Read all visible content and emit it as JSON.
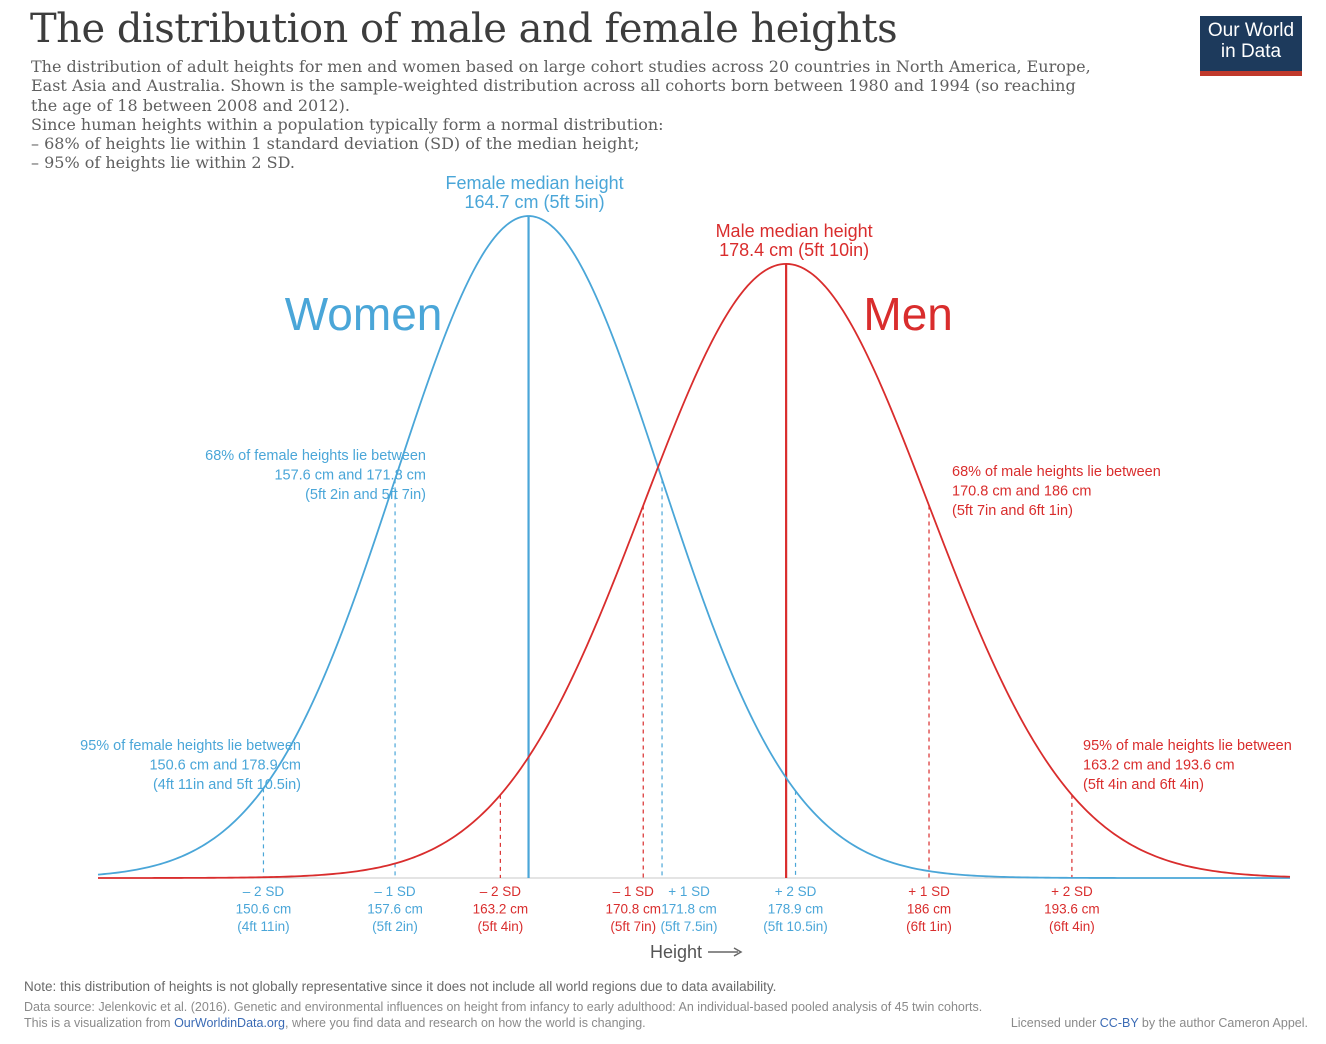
{
  "title": "The distribution of male and female heights",
  "subtitle": [
    "The distribution of adult heights for men and women based on large cohort studies across 20 countries in North America, Europe,",
    "East Asia and Australia. Shown is the sample-weighted distribution across all cohorts born between 1980 and 1994 (so reaching",
    "the age of 18 between 2008 and 2012).",
    "Since human heights within a population typically form a normal distribution:",
    "– 68% of heights lie within 1 standard deviation (SD) of the median height;",
    "– 95% of heights lie within 2 SD."
  ],
  "logo": {
    "line1": "Our World",
    "line2": "in Data",
    "bg": "#1d3a5c",
    "accent": "#c0392b"
  },
  "chart_data": {
    "type": "line",
    "xlabel": "Height",
    "colors": {
      "women": "#4aa6d8",
      "men": "#d92d2d"
    },
    "xlim": [
      141.8,
      205.2
    ],
    "series": [
      {
        "name": "Women",
        "color": "#4aa6d8",
        "median": 164.7,
        "sd": 7.05,
        "median_label": [
          "Female median height",
          "164.7 cm (5ft 5in)"
        ],
        "sd_ticks": [
          {
            "value": 150.6,
            "lines": [
              "– 2 SD",
              "150.6 cm",
              "(4ft 11in)"
            ]
          },
          {
            "value": 157.6,
            "lines": [
              "– 1 SD",
              "157.6 cm",
              "(5ft 2in)"
            ]
          },
          {
            "value": 171.8,
            "lines": [
              "+ 1 SD",
              "171.8 cm",
              "(5ft 7.5in)"
            ]
          },
          {
            "value": 178.9,
            "lines": [
              "+ 2 SD",
              "178.9 cm",
              "(5ft 10.5in)"
            ]
          }
        ],
        "annotations": [
          [
            "68% of female heights lie between",
            "157.6 cm and 171.8 cm",
            "(5ft 2in and 5ft 7in)"
          ],
          [
            "95% of female heights lie between",
            "150.6 cm and 178.9 cm",
            "(4ft 11in and 5ft 10.5in)"
          ]
        ]
      },
      {
        "name": "Men",
        "color": "#d92d2d",
        "median": 178.4,
        "sd": 7.6,
        "median_label": [
          "Male median height",
          "178.4 cm (5ft 10in)"
        ],
        "sd_ticks": [
          {
            "value": 163.2,
            "lines": [
              "– 2 SD",
              "163.2 cm",
              "(5ft 4in)"
            ]
          },
          {
            "value": 170.8,
            "lines": [
              "– 1 SD",
              "170.8 cm",
              "(5ft 7in)"
            ]
          },
          {
            "value": 186.0,
            "lines": [
              "+ 1 SD",
              "186 cm",
              "(6ft 1in)"
            ]
          },
          {
            "value": 193.6,
            "lines": [
              "+ 2 SD",
              "193.6 cm",
              "(6ft 4in)"
            ]
          }
        ],
        "annotations": [
          [
            "68% of male heights lie between",
            "170.8 cm and 186 cm",
            "(5ft 7in and 6ft 1in)"
          ],
          [
            "95% of male heights lie between",
            "163.2 cm and 193.6 cm",
            "(5ft 4in and 6ft 4in)"
          ]
        ]
      }
    ]
  },
  "footer": {
    "note": "Note: this distribution of heights is not globally representative since it does not include all world regions due to data availability.",
    "source": "Data source: Jelenkovic et al. (2016). Genetic and environmental influences on height from infancy to early adulthood: An individual-based pooled analysis of 45 twin cohorts.",
    "viz_prefix": "This is a visualization from ",
    "viz_link": "OurWorldinData.org",
    "viz_suffix": ", where you find data and research on how the world is changing.",
    "license_prefix": "Licensed under ",
    "license_link": "CC-BY",
    "license_suffix": " by the author Cameron Appel."
  }
}
